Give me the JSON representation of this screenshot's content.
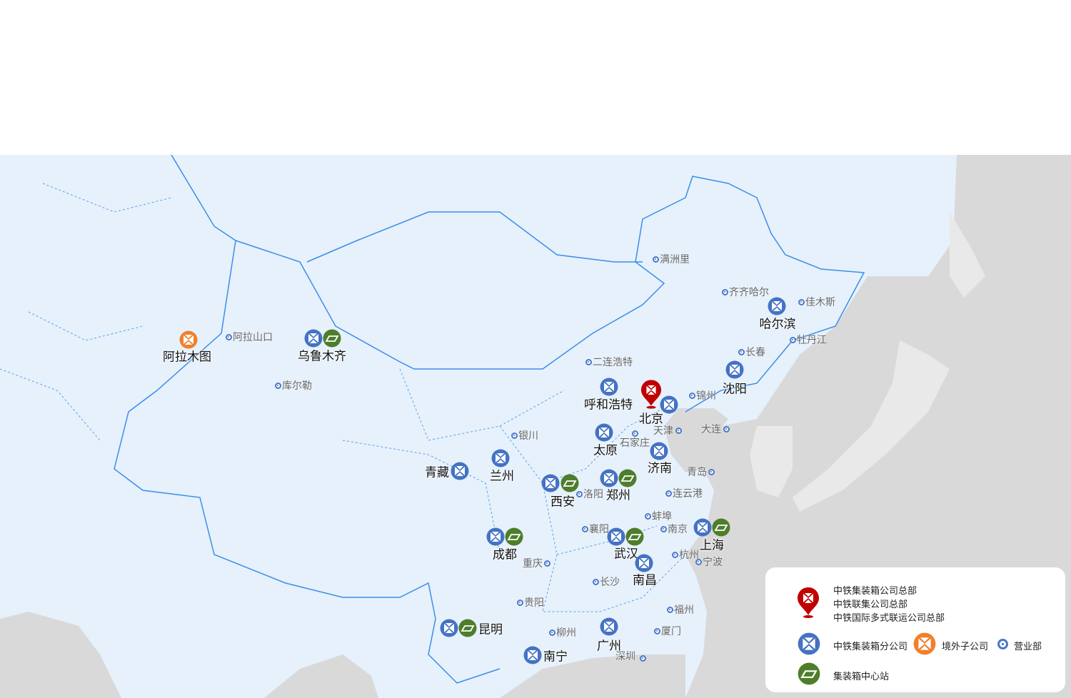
{
  "colors": {
    "branch": "#4472c4",
    "station": "#4e7d2b",
    "overseas": "#f0802b",
    "hq": "#c00000",
    "office": "#4a78c9",
    "land": "#e6f1fc",
    "foreign": "#d9d9d9",
    "border": "#3b8ee8"
  },
  "markers": [
    {
      "name": "阿拉木图",
      "icons": [
        "overseas-icon"
      ]
    },
    {
      "name": "乌鲁木齐",
      "icons": [
        "branch-icon",
        "station-icon"
      ]
    },
    {
      "name": "呼和浩特",
      "icons": [
        "branch-icon"
      ]
    },
    {
      "name": "北京",
      "icons": [
        "hq-pin-icon",
        "branch-icon"
      ]
    },
    {
      "name": "沈阳",
      "icons": [
        "branch-icon"
      ]
    },
    {
      "name": "哈尔滨",
      "icons": [
        "branch-icon"
      ]
    },
    {
      "name": "太原",
      "icons": [
        "branch-icon"
      ]
    },
    {
      "name": "济南",
      "icons": [
        "branch-icon"
      ]
    },
    {
      "name": "兰州",
      "icons": [
        "branch-icon"
      ]
    },
    {
      "name": "青藏",
      "icons": [
        "branch-icon"
      ]
    },
    {
      "name": "西安",
      "icons": [
        "branch-icon",
        "station-icon"
      ]
    },
    {
      "name": "郑州",
      "icons": [
        "branch-icon",
        "station-icon"
      ]
    },
    {
      "name": "成都",
      "icons": [
        "branch-icon",
        "station-icon"
      ]
    },
    {
      "name": "武汉",
      "icons": [
        "branch-icon",
        "station-icon"
      ]
    },
    {
      "name": "上海",
      "icons": [
        "branch-icon",
        "station-icon"
      ]
    },
    {
      "name": "南昌",
      "icons": [
        "branch-icon"
      ]
    },
    {
      "name": "广州",
      "icons": [
        "branch-icon"
      ]
    },
    {
      "name": "昆明",
      "icons": [
        "branch-icon",
        "station-icon"
      ]
    },
    {
      "name": "南宁",
      "icons": [
        "branch-icon"
      ]
    }
  ],
  "offices": [
    "阿拉山口",
    "库尔勒",
    "满洲里",
    "齐齐哈尔",
    "佳木斯",
    "牡丹江",
    "长春",
    "二连浩特",
    "锦州",
    "天津",
    "石家庄",
    "银川",
    "洛阳",
    "连云港",
    "蚌埠",
    "襄阳",
    "南京",
    "杭州",
    "宁波",
    "长沙",
    "贵阳",
    "福州",
    "厦门",
    "柳州",
    "深圳",
    "大连",
    "青岛",
    "重庆"
  ],
  "legend": {
    "hq_lines": [
      "中铁集装箱公司总部",
      "中铁联集公司总部",
      "中铁国际多式联运公司总部"
    ],
    "branch": "中铁集装箱分公司",
    "overseas": "境外子公司",
    "office": "营业部",
    "station": "集装箱中心站"
  }
}
